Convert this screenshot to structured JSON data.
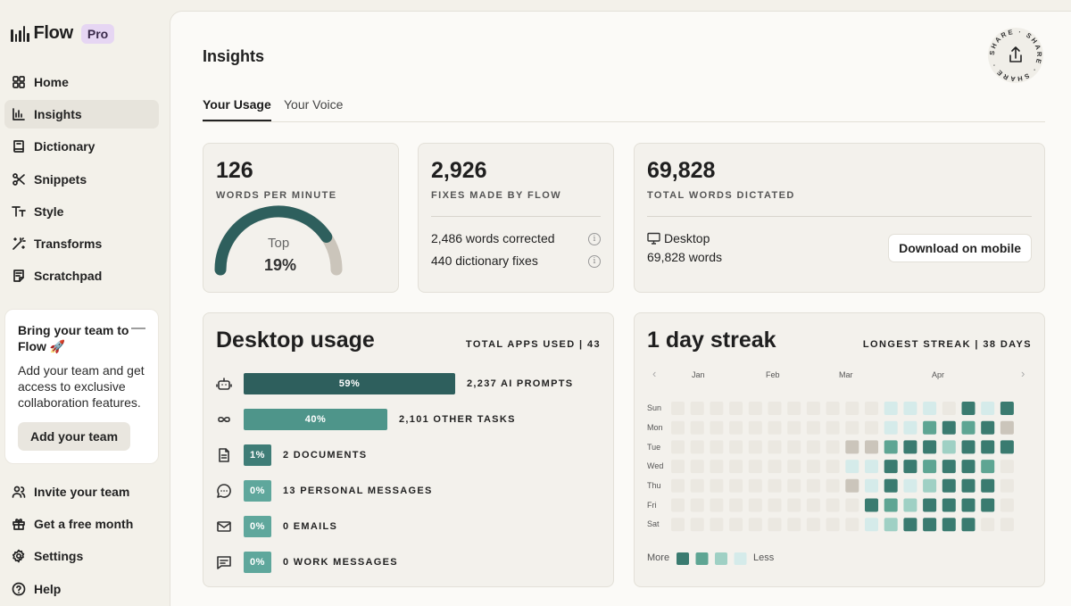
{
  "app": {
    "name": "Flow",
    "badge": "Pro"
  },
  "sidebar": {
    "items": [
      {
        "label": "Home",
        "icon": "grid-icon"
      },
      {
        "label": "Insights",
        "icon": "chart-icon",
        "active": true
      },
      {
        "label": "Dictionary",
        "icon": "book-icon"
      },
      {
        "label": "Snippets",
        "icon": "scissors-icon"
      },
      {
        "label": "Style",
        "icon": "text-style-icon"
      },
      {
        "label": "Transforms",
        "icon": "magic-wand-icon"
      },
      {
        "label": "Scratchpad",
        "icon": "note-icon"
      }
    ],
    "promo": {
      "title": "Bring your team to Flow 🚀",
      "text": "Add your team and get access to exclusive collaboration features.",
      "button": "Add your team"
    },
    "bottom_items": [
      {
        "label": "Invite your team",
        "icon": "users-icon"
      },
      {
        "label": "Get a free month",
        "icon": "gift-icon"
      },
      {
        "label": "Settings",
        "icon": "gear-icon"
      },
      {
        "label": "Help",
        "icon": "help-icon"
      }
    ]
  },
  "main": {
    "title": "Insights",
    "share_text": "SHARE · SHARE · SHARE ·",
    "tabs": [
      {
        "label": "Your Usage",
        "active": true
      },
      {
        "label": "Your Voice",
        "active": false
      }
    ],
    "wpm": {
      "value": "126",
      "label": "WORDS PER MINUTE",
      "gauge_top": "Top",
      "gauge_pct": "19%",
      "gauge_fraction": 0.81
    },
    "fixes": {
      "value": "2,926",
      "label": "FIXES MADE BY FLOW",
      "rows": [
        "2,486 words corrected",
        "440 dictionary fixes"
      ]
    },
    "words": {
      "value": "69,828",
      "label": "TOTAL WORDS DICTATED",
      "device": "Desktop",
      "device_words": "69,828 words",
      "download_button": "Download on mobile"
    },
    "desktop_usage": {
      "title": "Desktop usage",
      "meta": "TOTAL APPS USED | 43",
      "rows": [
        {
          "icon": "robot-icon",
          "pct": "59%",
          "fraction": 0.59,
          "label": "2,237 AI PROMPTS",
          "color": "#2e5f5d"
        },
        {
          "icon": "infinity-icon",
          "pct": "40%",
          "fraction": 0.4,
          "label": "2,101 OTHER TASKS",
          "color": "#4e958a"
        },
        {
          "icon": "document-icon",
          "pct": "1%",
          "fraction": 0.01,
          "label": "2 DOCUMENTS",
          "color": "#3f7d77"
        },
        {
          "icon": "chat-bubble-icon",
          "pct": "0%",
          "fraction": 0.0,
          "label": "13 PERSONAL MESSAGES",
          "color": "#5fa79c"
        },
        {
          "icon": "mail-icon",
          "pct": "0%",
          "fraction": 0.0,
          "label": "0 EMAILS",
          "color": "#5fa79c"
        },
        {
          "icon": "message-square-icon",
          "pct": "0%",
          "fraction": 0.0,
          "label": "0 WORK MESSAGES",
          "color": "#5fa79c"
        }
      ]
    },
    "streak": {
      "title": "1 day streak",
      "meta": "LONGEST STREAK | 38 DAYS",
      "months": [
        "Jan",
        "Feb",
        "Mar",
        "Apr"
      ],
      "days": [
        "Sun",
        "Mon",
        "Tue",
        "Wed",
        "Thu",
        "Fri",
        "Sat"
      ],
      "legend_more": "More",
      "legend_less": "Less",
      "colors": {
        "0": "#ebe8e1",
        "1": "#d5ebea",
        "2": "#9fd0c4",
        "3": "#5ea593",
        "4": "#3a7b70",
        "g": "#cbc5bb"
      },
      "grid": [
        "0000000000011104144",
        "00000000000113434g",
        "000000000gg3442444",
        "000000000114434430",
        "000000000g14124440",
        "000000000043244440",
        "000000000012444400"
      ]
    }
  }
}
